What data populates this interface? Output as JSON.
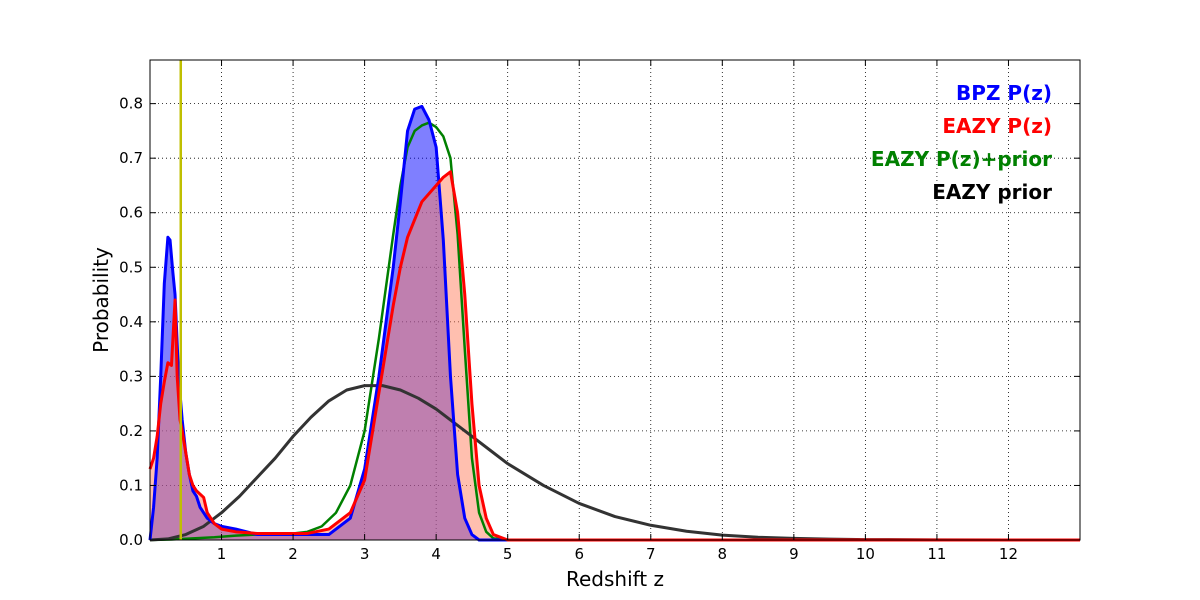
{
  "chart_data": {
    "type": "area",
    "title": "",
    "xlabel": "Redshift z",
    "ylabel": "Probability",
    "xlim": [
      0,
      13
    ],
    "ylim": [
      0,
      0.88
    ],
    "xticks": [
      1,
      2,
      3,
      4,
      5,
      6,
      7,
      8,
      9,
      10,
      11,
      12
    ],
    "yticks": [
      0.0,
      0.1,
      0.2,
      0.3,
      0.4,
      0.5,
      0.6,
      0.7,
      0.8
    ],
    "grid": true,
    "legend_position": "top-right",
    "vline": {
      "x": 0.43,
      "color": "#bfbf00"
    },
    "series": [
      {
        "name": "BPZ P(z)",
        "color": "#0000ff",
        "fill": "#0000ff",
        "x": [
          0.0,
          0.05,
          0.1,
          0.15,
          0.2,
          0.25,
          0.28,
          0.32,
          0.35,
          0.4,
          0.45,
          0.5,
          0.55,
          0.6,
          0.65,
          0.7,
          0.8,
          0.9,
          1.0,
          1.2,
          1.5,
          1.8,
          2.0,
          2.2,
          2.5,
          2.8,
          3.0,
          3.2,
          3.4,
          3.5,
          3.6,
          3.7,
          3.8,
          3.9,
          4.0,
          4.1,
          4.2,
          4.3,
          4.4,
          4.5,
          4.6,
          5.0,
          13.0
        ],
        "y": [
          0.0,
          0.06,
          0.15,
          0.3,
          0.47,
          0.555,
          0.55,
          0.49,
          0.45,
          0.3,
          0.22,
          0.16,
          0.12,
          0.09,
          0.08,
          0.06,
          0.04,
          0.03,
          0.025,
          0.02,
          0.01,
          0.01,
          0.01,
          0.01,
          0.01,
          0.04,
          0.13,
          0.3,
          0.5,
          0.62,
          0.75,
          0.79,
          0.795,
          0.77,
          0.72,
          0.55,
          0.3,
          0.12,
          0.04,
          0.01,
          0.0,
          0.0,
          0.0
        ]
      },
      {
        "name": "EAZY P(z)",
        "color": "#ff0000",
        "fill": "#ff8060",
        "x": [
          0.0,
          0.05,
          0.1,
          0.15,
          0.2,
          0.25,
          0.3,
          0.35,
          0.38,
          0.42,
          0.45,
          0.5,
          0.55,
          0.6,
          0.65,
          0.75,
          0.8,
          0.9,
          1.0,
          1.2,
          1.5,
          1.8,
          2.0,
          2.2,
          2.5,
          2.8,
          3.0,
          3.2,
          3.4,
          3.5,
          3.6,
          3.8,
          4.0,
          4.1,
          4.2,
          4.3,
          4.4,
          4.5,
          4.6,
          4.7,
          4.8,
          5.0,
          13.0
        ],
        "y": [
          0.13,
          0.15,
          0.19,
          0.25,
          0.29,
          0.325,
          0.32,
          0.44,
          0.3,
          0.22,
          0.2,
          0.16,
          0.12,
          0.1,
          0.09,
          0.078,
          0.05,
          0.03,
          0.02,
          0.015,
          0.012,
          0.012,
          0.012,
          0.012,
          0.02,
          0.05,
          0.11,
          0.27,
          0.43,
          0.5,
          0.555,
          0.62,
          0.65,
          0.665,
          0.675,
          0.6,
          0.45,
          0.25,
          0.1,
          0.04,
          0.01,
          0.0,
          0.0
        ]
      },
      {
        "name": "EAZY P(z)+prior",
        "color": "#008000",
        "fill": "",
        "x": [
          0.0,
          0.3,
          0.6,
          0.9,
          1.2,
          1.5,
          1.8,
          2.0,
          2.2,
          2.4,
          2.6,
          2.8,
          3.0,
          3.2,
          3.4,
          3.5,
          3.6,
          3.7,
          3.8,
          3.9,
          4.0,
          4.1,
          4.2,
          4.3,
          4.4,
          4.5,
          4.6,
          4.7,
          4.8,
          5.0,
          13.0
        ],
        "y": [
          0.0,
          0.001,
          0.003,
          0.005,
          0.008,
          0.01,
          0.01,
          0.012,
          0.015,
          0.025,
          0.05,
          0.1,
          0.2,
          0.37,
          0.56,
          0.65,
          0.72,
          0.75,
          0.76,
          0.765,
          0.757,
          0.74,
          0.7,
          0.56,
          0.35,
          0.15,
          0.05,
          0.015,
          0.003,
          0.0,
          0.0
        ]
      },
      {
        "name": "EAZY prior",
        "color": "#333333",
        "fill": "",
        "x": [
          0.0,
          0.25,
          0.5,
          0.75,
          1.0,
          1.25,
          1.5,
          1.75,
          2.0,
          2.25,
          2.5,
          2.75,
          3.0,
          3.25,
          3.5,
          3.75,
          4.0,
          4.25,
          4.5,
          4.75,
          5.0,
          5.5,
          6.0,
          6.5,
          7.0,
          7.5,
          8.0,
          8.5,
          9.0,
          9.5,
          10.0,
          11.0,
          12.0
        ],
        "y": [
          0.0,
          0.002,
          0.01,
          0.025,
          0.05,
          0.08,
          0.115,
          0.15,
          0.19,
          0.225,
          0.255,
          0.275,
          0.283,
          0.283,
          0.275,
          0.26,
          0.24,
          0.215,
          0.19,
          0.165,
          0.14,
          0.1,
          0.067,
          0.043,
          0.027,
          0.016,
          0.009,
          0.005,
          0.003,
          0.0015,
          0.0008,
          0.0002,
          0.0
        ]
      }
    ]
  }
}
